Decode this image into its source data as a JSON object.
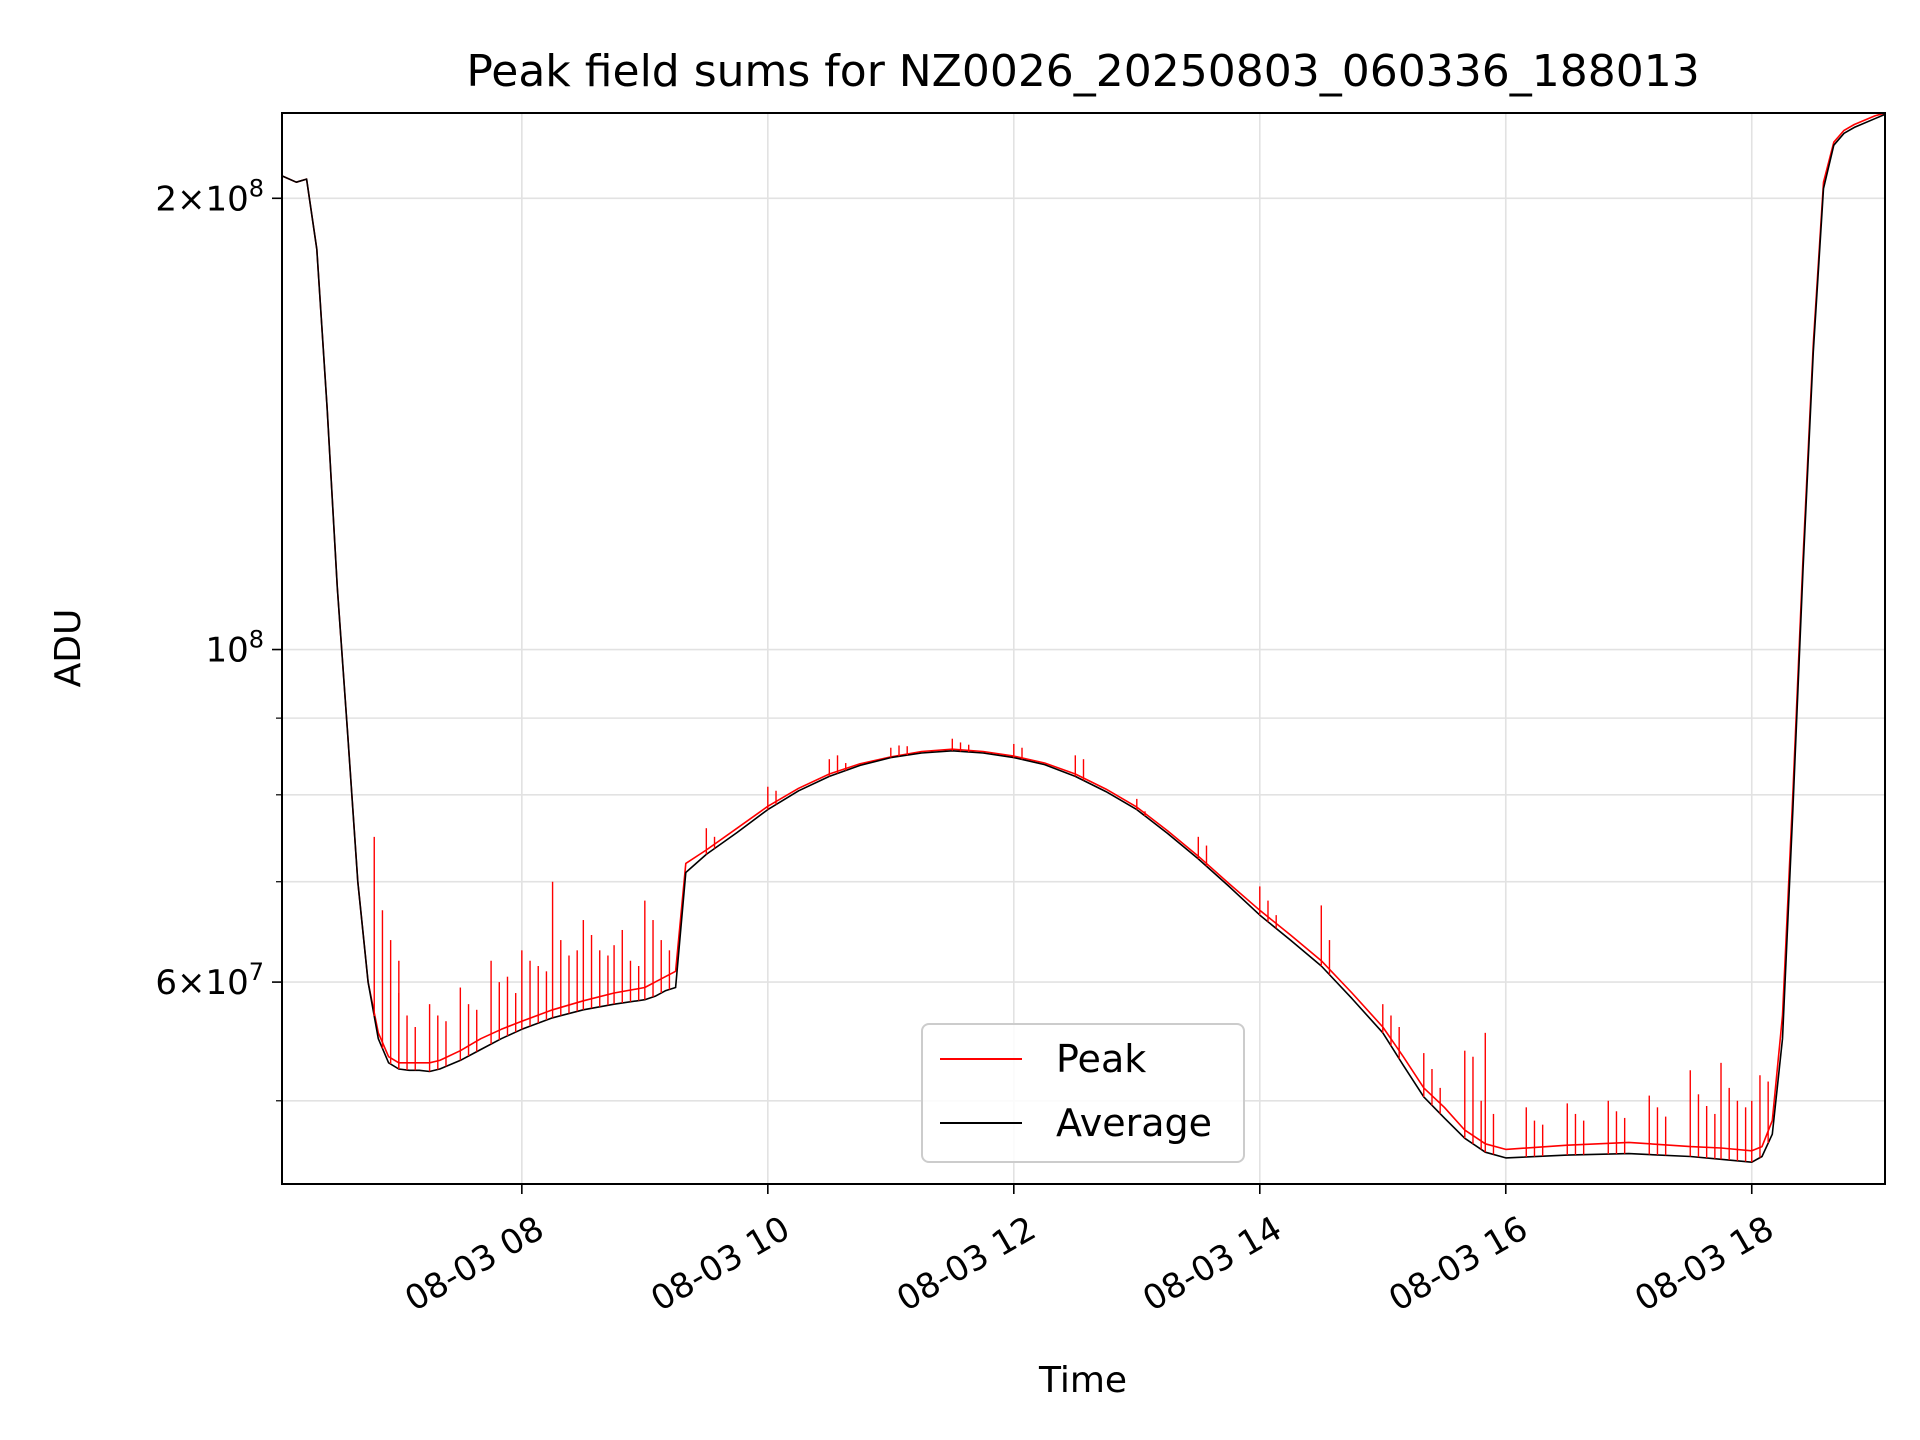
{
  "chart_data": {
    "type": "line",
    "title": "Peak field sums for NZ0026_20250803_060336_188013",
    "xlabel": "Time",
    "ylabel": "ADU",
    "x_tick_labels": [
      "08-03 08",
      "08-03 10",
      "08-03 12",
      "08-03 14",
      "08-03 16",
      "08-03 18"
    ],
    "x_tick_values": [
      "2025-08-03 08:00",
      "2025-08-03 10:00",
      "2025-08-03 12:00",
      "2025-08-03 14:00",
      "2025-08-03 16:00",
      "2025-08-03 18:00"
    ],
    "xlim": [
      "2025-08-03 06:03",
      "2025-08-03 19:05"
    ],
    "y_scale": "log",
    "ylim": [
      44000000,
      228000000
    ],
    "y_major_ticks": [
      {
        "value": 200000000,
        "mantissa": "2",
        "base": "10",
        "exp": "8"
      },
      {
        "value": 100000000,
        "mantissa": "",
        "base": "10",
        "exp": "8"
      },
      {
        "value": 60000000,
        "mantissa": "6",
        "base": "10",
        "exp": "7"
      }
    ],
    "y_minor_ticks": [
      50000000,
      70000000,
      80000000,
      90000000
    ],
    "grid": true,
    "legend_position": "lower center",
    "series": [
      {
        "name": "Peak",
        "color": "#ff0000",
        "x": [
          "2025-08-03 06:03",
          "2025-08-03 06:10",
          "2025-08-03 06:15",
          "2025-08-03 06:20",
          "2025-08-03 06:25",
          "2025-08-03 06:30",
          "2025-08-03 06:35",
          "2025-08-03 06:40",
          "2025-08-03 06:45",
          "2025-08-03 06:50",
          "2025-08-03 06:55",
          "2025-08-03 07:00",
          "2025-08-03 07:05",
          "2025-08-03 07:10",
          "2025-08-03 07:15",
          "2025-08-03 07:20",
          "2025-08-03 07:30",
          "2025-08-03 07:40",
          "2025-08-03 07:50",
          "2025-08-03 08:00",
          "2025-08-03 08:15",
          "2025-08-03 08:30",
          "2025-08-03 08:45",
          "2025-08-03 09:00",
          "2025-08-03 09:05",
          "2025-08-03 09:10",
          "2025-08-03 09:15",
          "2025-08-03 09:20",
          "2025-08-03 09:30",
          "2025-08-03 09:45",
          "2025-08-03 10:00",
          "2025-08-03 10:15",
          "2025-08-03 10:30",
          "2025-08-03 10:45",
          "2025-08-03 11:00",
          "2025-08-03 11:15",
          "2025-08-03 11:30",
          "2025-08-03 11:45",
          "2025-08-03 12:00",
          "2025-08-03 12:15",
          "2025-08-03 12:30",
          "2025-08-03 12:45",
          "2025-08-03 13:00",
          "2025-08-03 13:15",
          "2025-08-03 13:30",
          "2025-08-03 13:45",
          "2025-08-03 14:00",
          "2025-08-03 14:15",
          "2025-08-03 14:30",
          "2025-08-03 14:45",
          "2025-08-03 15:00",
          "2025-08-03 15:10",
          "2025-08-03 15:20",
          "2025-08-03 15:30",
          "2025-08-03 15:40",
          "2025-08-03 15:50",
          "2025-08-03 16:00",
          "2025-08-03 16:30",
          "2025-08-03 17:00",
          "2025-08-03 17:30",
          "2025-08-03 17:45",
          "2025-08-03 18:00",
          "2025-08-03 18:05",
          "2025-08-03 18:10",
          "2025-08-03 18:15",
          "2025-08-03 18:20",
          "2025-08-03 18:25",
          "2025-08-03 18:30",
          "2025-08-03 18:35",
          "2025-08-03 18:40",
          "2025-08-03 18:45",
          "2025-08-03 18:50",
          "2025-08-03 19:00",
          "2025-08-03 19:05"
        ],
        "values": [
          207000000,
          205000000,
          206000000,
          185000000,
          145000000,
          110000000,
          88000000,
          70000000,
          60000000,
          55500000,
          53500000,
          53000000,
          53000000,
          53000000,
          53000000,
          53200000,
          54000000,
          55000000,
          55800000,
          56500000,
          57500000,
          58300000,
          59000000,
          59500000,
          60000000,
          60500000,
          61000000,
          72000000,
          73500000,
          76000000,
          78600000,
          80800000,
          82600000,
          83900000,
          84800000,
          85500000,
          85800000,
          85500000,
          84900000,
          84000000,
          82600000,
          80700000,
          78500000,
          75700000,
          72800000,
          69800000,
          67000000,
          64500000,
          62000000,
          59000000,
          56000000,
          53500000,
          51000000,
          49500000,
          47800000,
          46800000,
          46400000,
          46700000,
          46900000,
          46600000,
          46500000,
          46300000,
          46600000,
          48500000,
          57000000,
          80000000,
          115000000,
          160000000,
          205000000,
          218000000,
          222000000,
          224000000,
          227000000,
          228000000
        ]
      },
      {
        "name": "Average",
        "color": "#000000",
        "x": [
          "2025-08-03 06:03",
          "2025-08-03 06:10",
          "2025-08-03 06:15",
          "2025-08-03 06:20",
          "2025-08-03 06:25",
          "2025-08-03 06:30",
          "2025-08-03 06:35",
          "2025-08-03 06:40",
          "2025-08-03 06:45",
          "2025-08-03 06:50",
          "2025-08-03 06:55",
          "2025-08-03 07:00",
          "2025-08-03 07:05",
          "2025-08-03 07:10",
          "2025-08-03 07:15",
          "2025-08-03 07:20",
          "2025-08-03 07:30",
          "2025-08-03 07:40",
          "2025-08-03 07:50",
          "2025-08-03 08:00",
          "2025-08-03 08:15",
          "2025-08-03 08:30",
          "2025-08-03 08:45",
          "2025-08-03 09:00",
          "2025-08-03 09:05",
          "2025-08-03 09:10",
          "2025-08-03 09:15",
          "2025-08-03 09:20",
          "2025-08-03 09:30",
          "2025-08-03 09:45",
          "2025-08-03 10:00",
          "2025-08-03 10:15",
          "2025-08-03 10:30",
          "2025-08-03 10:45",
          "2025-08-03 11:00",
          "2025-08-03 11:15",
          "2025-08-03 11:30",
          "2025-08-03 11:45",
          "2025-08-03 12:00",
          "2025-08-03 12:15",
          "2025-08-03 12:30",
          "2025-08-03 12:45",
          "2025-08-03 13:00",
          "2025-08-03 13:15",
          "2025-08-03 13:30",
          "2025-08-03 13:45",
          "2025-08-03 14:00",
          "2025-08-03 14:15",
          "2025-08-03 14:30",
          "2025-08-03 14:45",
          "2025-08-03 15:00",
          "2025-08-03 15:10",
          "2025-08-03 15:20",
          "2025-08-03 15:30",
          "2025-08-03 15:40",
          "2025-08-03 15:50",
          "2025-08-03 16:00",
          "2025-08-03 16:30",
          "2025-08-03 17:00",
          "2025-08-03 17:30",
          "2025-08-03 17:45",
          "2025-08-03 18:00",
          "2025-08-03 18:05",
          "2025-08-03 18:10",
          "2025-08-03 18:15",
          "2025-08-03 18:20",
          "2025-08-03 18:25",
          "2025-08-03 18:30",
          "2025-08-03 18:35",
          "2025-08-03 18:40",
          "2025-08-03 18:45",
          "2025-08-03 18:50",
          "2025-08-03 19:00",
          "2025-08-03 19:05"
        ],
        "values": [
          207000000,
          205000000,
          206000000,
          185000000,
          145000000,
          110000000,
          88000000,
          70000000,
          60000000,
          55000000,
          53000000,
          52500000,
          52400000,
          52400000,
          52300000,
          52500000,
          53200000,
          54100000,
          55000000,
          55800000,
          56800000,
          57500000,
          58000000,
          58400000,
          58700000,
          59200000,
          59500000,
          71000000,
          73000000,
          75500000,
          78200000,
          80500000,
          82300000,
          83700000,
          84700000,
          85300000,
          85600000,
          85300000,
          84700000,
          83800000,
          82300000,
          80400000,
          78200000,
          75400000,
          72500000,
          69500000,
          66500000,
          64000000,
          61500000,
          58500000,
          55500000,
          52800000,
          50300000,
          48700000,
          47200000,
          46200000,
          45800000,
          46000000,
          46100000,
          45900000,
          45700000,
          45500000,
          45900000,
          47500000,
          55000000,
          78000000,
          113000000,
          158000000,
          203000000,
          217000000,
          221000000,
          223000000,
          226000000,
          227500000
        ]
      }
    ],
    "peak_spikes": [
      {
        "x": "2025-08-03 06:48",
        "values": [
          75000000,
          67000000,
          64000000,
          62000000
        ]
      },
      {
        "x": "2025-08-03 07:00",
        "values": [
          59000000,
          57000000,
          56000000
        ]
      },
      {
        "x": "2025-08-03 07:15",
        "values": [
          58000000,
          57000000,
          56500000
        ]
      },
      {
        "x": "2025-08-03 07:30",
        "values": [
          59500000,
          58000000,
          57500000
        ]
      },
      {
        "x": "2025-08-03 07:45",
        "values": [
          62000000,
          60000000,
          60500000,
          59000000
        ]
      },
      {
        "x": "2025-08-03 08:00",
        "values": [
          63000000,
          62000000,
          61500000,
          61000000
        ]
      },
      {
        "x": "2025-08-03 08:15",
        "values": [
          70000000,
          64000000,
          62500000,
          63000000
        ]
      },
      {
        "x": "2025-08-03 08:30",
        "values": [
          66000000,
          64500000,
          63000000,
          62500000
        ]
      },
      {
        "x": "2025-08-03 08:45",
        "values": [
          63500000,
          65000000,
          62000000,
          61500000
        ]
      },
      {
        "x": "2025-08-03 09:00",
        "values": [
          68000000,
          66000000,
          64000000,
          63000000
        ]
      },
      {
        "x": "2025-08-03 09:30",
        "values": [
          76000000,
          75000000
        ]
      },
      {
        "x": "2025-08-03 10:00",
        "values": [
          81000000,
          80500000
        ]
      },
      {
        "x": "2025-08-03 10:30",
        "values": [
          84500000,
          85000000,
          84000000
        ]
      },
      {
        "x": "2025-08-03 11:00",
        "values": [
          86000000,
          86300000,
          86200000
        ]
      },
      {
        "x": "2025-08-03 11:30",
        "values": [
          87200000,
          86700000,
          86400000
        ]
      },
      {
        "x": "2025-08-03 12:00",
        "values": [
          86500000,
          86000000
        ]
      },
      {
        "x": "2025-08-03 12:30",
        "values": [
          85000000,
          84500000
        ]
      },
      {
        "x": "2025-08-03 13:00",
        "values": [
          79500000,
          78000000
        ]
      },
      {
        "x": "2025-08-03 13:30",
        "values": [
          75000000,
          74000000
        ]
      },
      {
        "x": "2025-08-03 14:00",
        "values": [
          69500000,
          68000000,
          66500000
        ]
      },
      {
        "x": "2025-08-03 14:30",
        "values": [
          67500000,
          64000000
        ]
      },
      {
        "x": "2025-08-03 15:00",
        "values": [
          58000000,
          57000000,
          56000000
        ]
      },
      {
        "x": "2025-08-03 15:20",
        "values": [
          53800000,
          52500000,
          51000000
        ]
      },
      {
        "x": "2025-08-03 15:40",
        "values": [
          54000000,
          53500000,
          50000000
        ]
      },
      {
        "x": "2025-08-03 15:50",
        "values": [
          55500000,
          49000000
        ]
      },
      {
        "x": "2025-08-03 16:10",
        "values": [
          49500000,
          48500000,
          48200000
        ]
      },
      {
        "x": "2025-08-03 16:30",
        "values": [
          49800000,
          49000000,
          48500000
        ]
      },
      {
        "x": "2025-08-03 16:50",
        "values": [
          50000000,
          49200000,
          48700000
        ]
      },
      {
        "x": "2025-08-03 17:10",
        "values": [
          50400000,
          49500000,
          48800000
        ]
      },
      {
        "x": "2025-08-03 17:30",
        "values": [
          52400000,
          50500000,
          49600000,
          49000000
        ]
      },
      {
        "x": "2025-08-03 17:45",
        "values": [
          53000000,
          51000000,
          50000000,
          49500000
        ]
      },
      {
        "x": "2025-08-03 18:00",
        "values": [
          50000000,
          52000000,
          51500000
        ]
      }
    ]
  }
}
